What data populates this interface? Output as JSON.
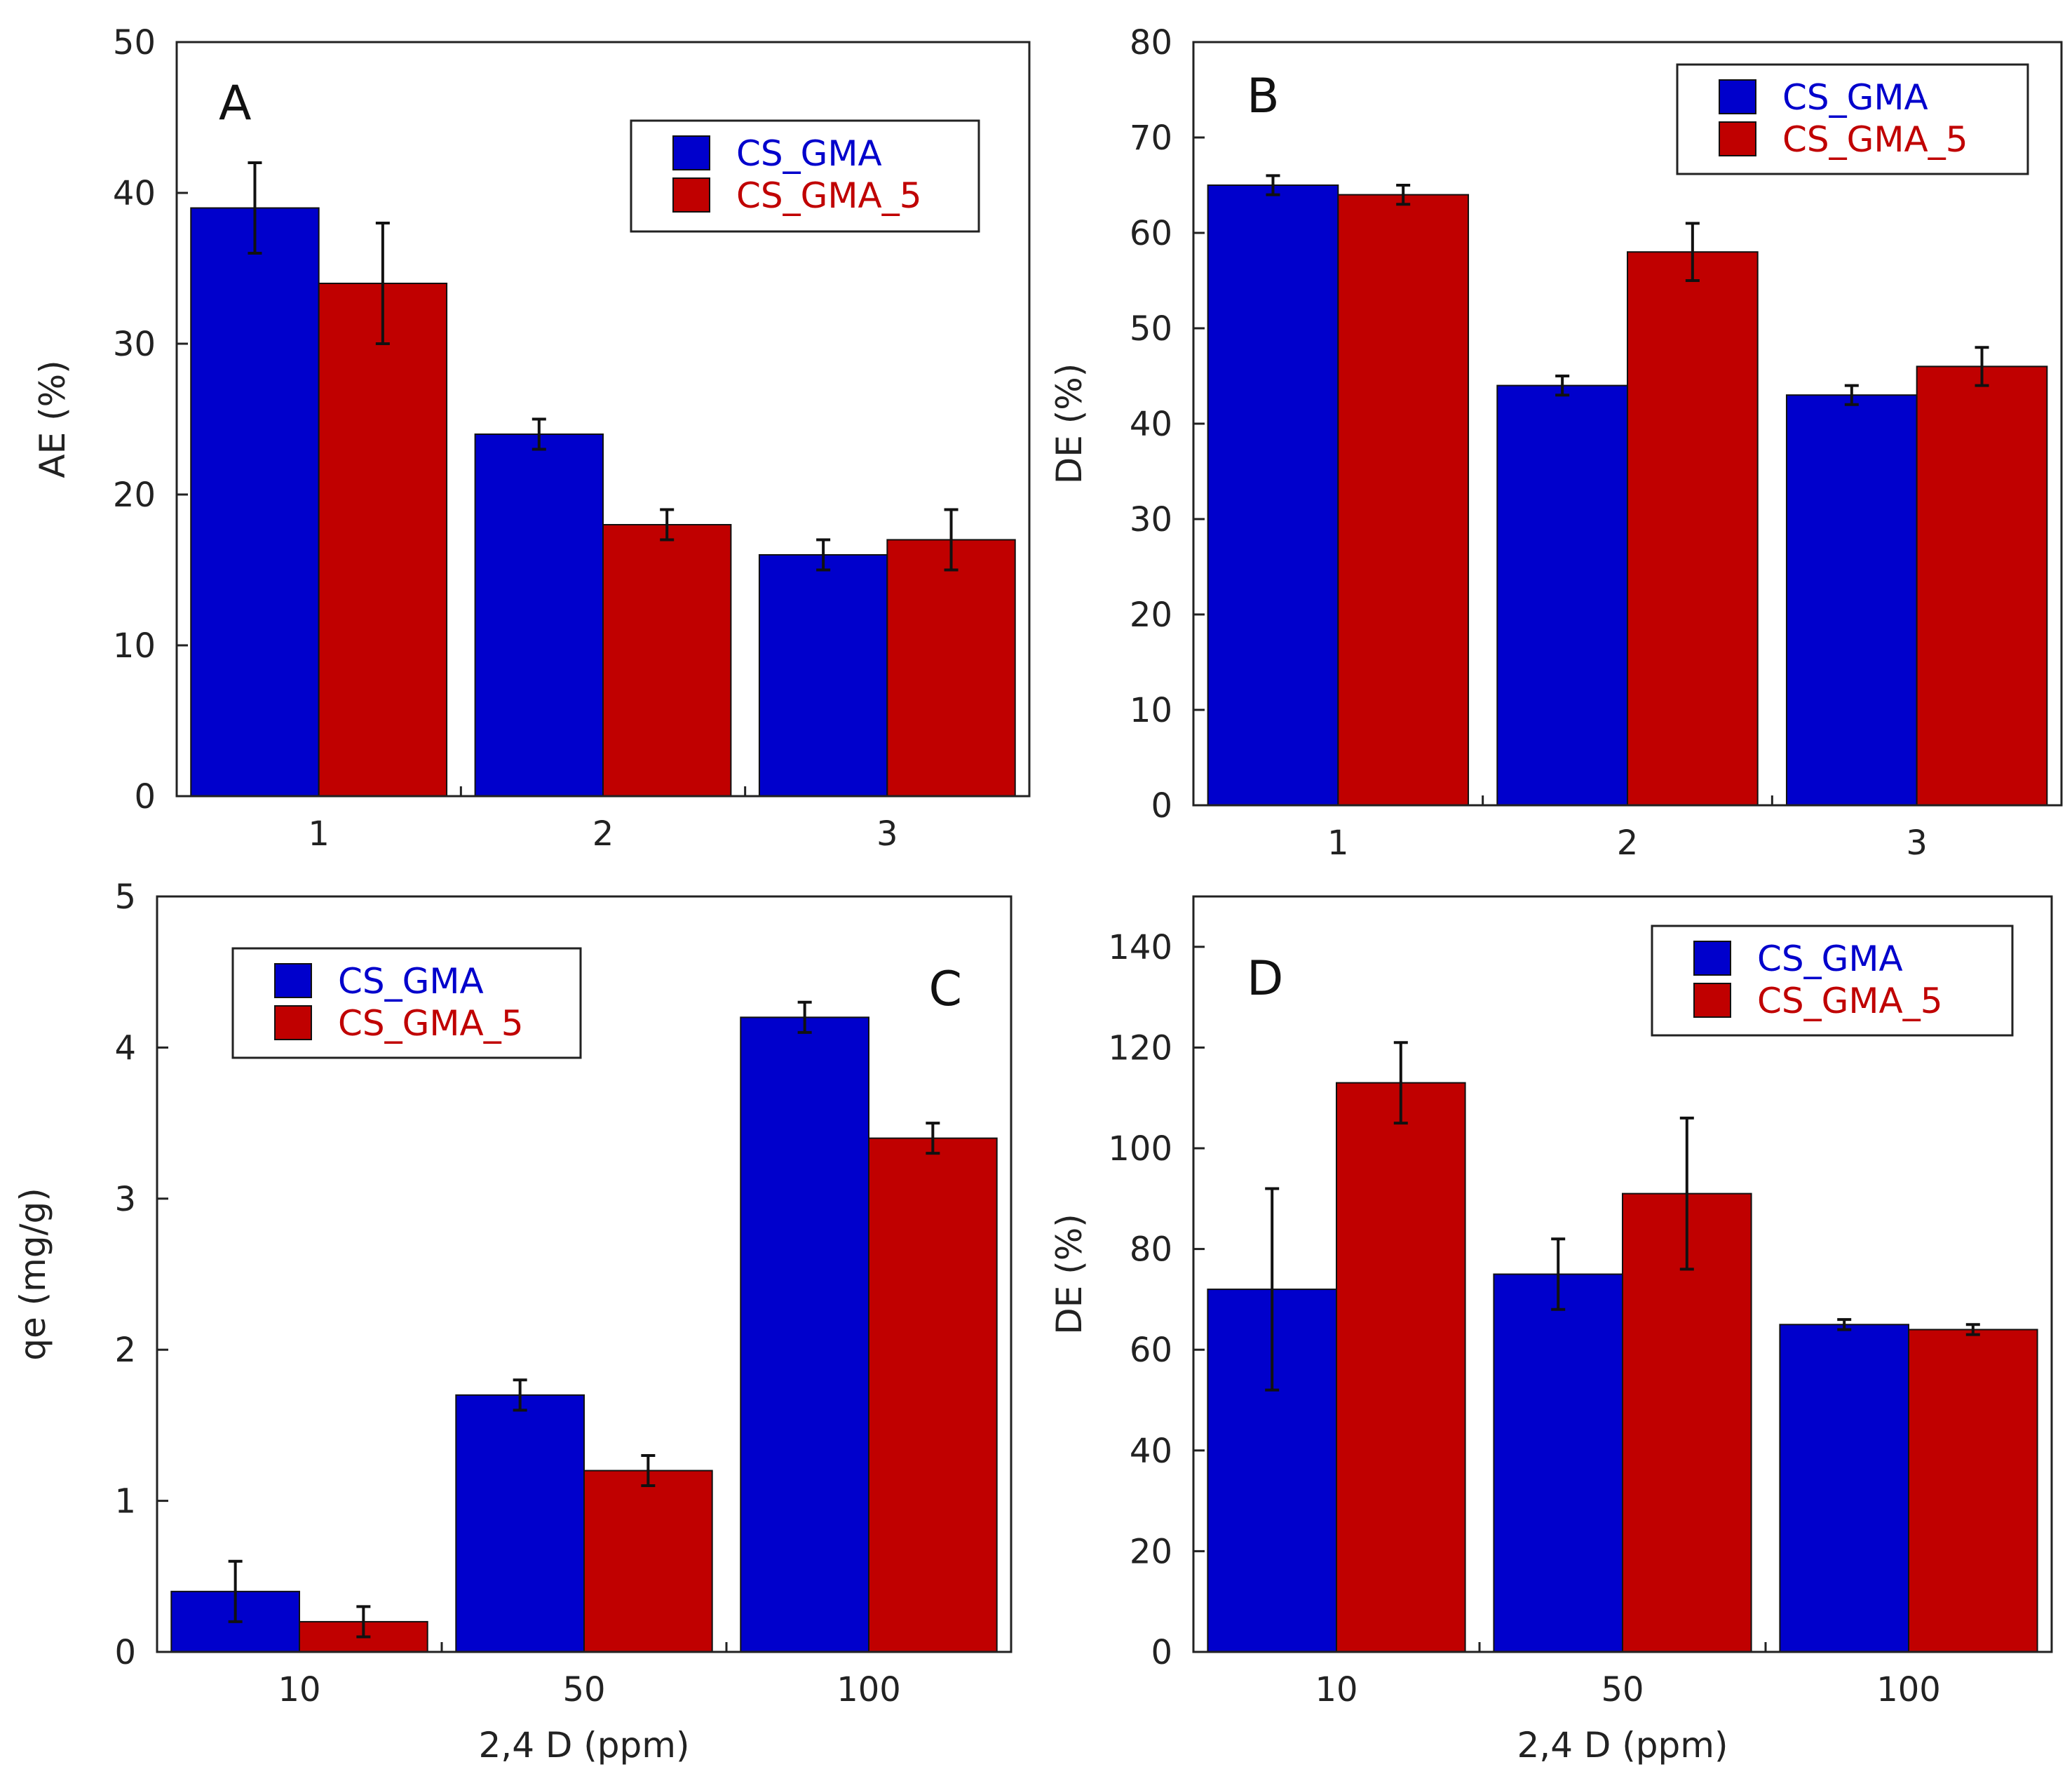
{
  "figure": {
    "colors": {
      "series_1": "#0000cc",
      "series_2": "#c00000",
      "axis": "#222222",
      "text": "#222222"
    }
  },
  "chart_data": [
    {
      "id": "A",
      "type": "bar",
      "panel_label": "A",
      "title": "",
      "xlabel": "",
      "ylabel": "AE (%)",
      "categories": [
        "1",
        "2",
        "3"
      ],
      "ylim": [
        0,
        50
      ],
      "yticks": [
        0,
        10,
        20,
        30,
        40,
        50
      ],
      "series": [
        {
          "name": "CS_GMA",
          "values": [
            39,
            24,
            16
          ],
          "errors": [
            3,
            1,
            1
          ]
        },
        {
          "name": "CS_GMA_5",
          "values": [
            34,
            18,
            17
          ],
          "errors": [
            4,
            1,
            2
          ]
        }
      ],
      "legend_position": "top-right"
    },
    {
      "id": "B",
      "type": "bar",
      "panel_label": "B",
      "title": "",
      "xlabel": "",
      "ylabel": "DE (%)",
      "categories": [
        "1",
        "2",
        "3"
      ],
      "ylim": [
        0,
        80
      ],
      "yticks": [
        0,
        10,
        20,
        30,
        40,
        50,
        60,
        70,
        80
      ],
      "series": [
        {
          "name": "CS_GMA",
          "values": [
            65,
            44,
            43
          ],
          "errors": [
            1,
            1,
            1
          ]
        },
        {
          "name": "CS_GMA_5",
          "values": [
            64,
            58,
            46
          ],
          "errors": [
            1,
            3,
            2
          ]
        }
      ],
      "legend_position": "top-right"
    },
    {
      "id": "C",
      "type": "bar",
      "panel_label": "C",
      "title": "",
      "xlabel": "2,4 D (ppm)",
      "ylabel": "qe (mg/g)",
      "categories": [
        "10",
        "50",
        "100"
      ],
      "ylim": [
        0,
        5
      ],
      "yticks": [
        0,
        1,
        2,
        3,
        4,
        5
      ],
      "series": [
        {
          "name": "CS_GMA",
          "values": [
            0.4,
            1.7,
            4.2
          ],
          "errors": [
            0.2,
            0.1,
            0.1
          ]
        },
        {
          "name": "CS_GMA_5",
          "values": [
            0.2,
            1.2,
            3.4
          ],
          "errors": [
            0.1,
            0.1,
            0.1
          ]
        }
      ],
      "legend_position": "top-left"
    },
    {
      "id": "D",
      "type": "bar",
      "panel_label": "D",
      "title": "",
      "xlabel": "2,4 D (ppm)",
      "ylabel": "DE (%)",
      "categories": [
        "10",
        "50",
        "100"
      ],
      "ylim": [
        0,
        150
      ],
      "yticks": [
        0,
        20,
        40,
        60,
        80,
        100,
        120,
        140
      ],
      "series": [
        {
          "name": "CS_GMA",
          "values": [
            72,
            75,
            65
          ],
          "errors": [
            20,
            7,
            1
          ]
        },
        {
          "name": "CS_GMA_5",
          "values": [
            113,
            91,
            64
          ],
          "errors": [
            8,
            15,
            1
          ]
        }
      ],
      "legend_position": "top-right"
    }
  ]
}
